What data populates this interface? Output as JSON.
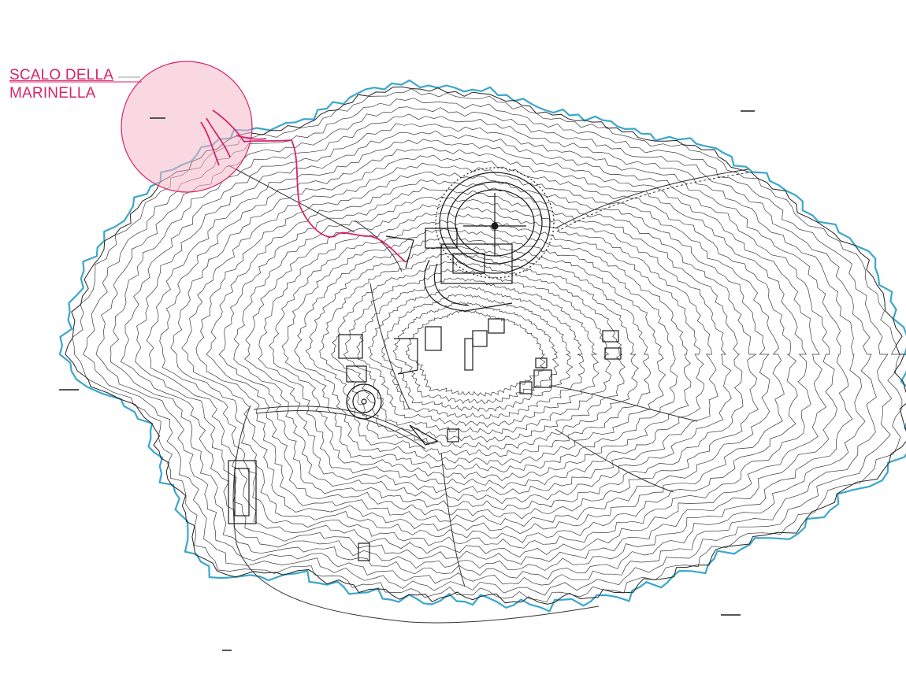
{
  "callout": {
    "line1": "SCALO DELLA",
    "line2": "MARINELLA",
    "color": "#d6246a",
    "highlight_fill": "#f5b8c9"
  },
  "colors": {
    "coastline": "#3aa7cc",
    "contours": "#3a3a3a",
    "path": "#d6246a"
  }
}
